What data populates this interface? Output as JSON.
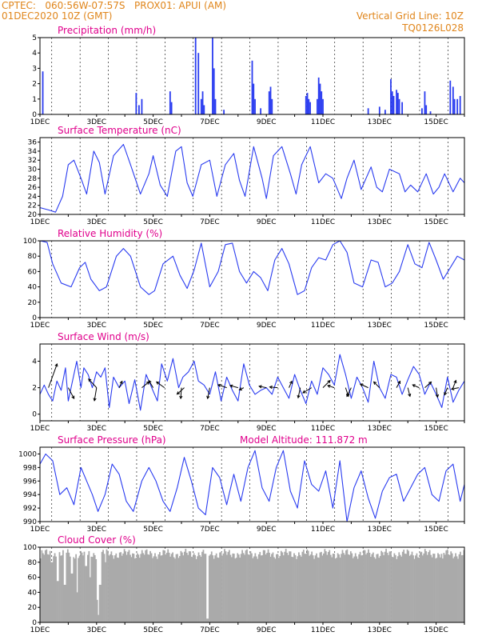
{
  "header": {
    "line1_left": "CPTEC:   060:56W-07:57S   PROX01: APUI (AM)",
    "line2_left": "01DEC2020 10Z (GMT)",
    "line2_right": "Vertical Grid Line: 10Z",
    "line3_right": "TQ0126L028"
  },
  "colors": {
    "header": "#e0861c",
    "title": "#e0008c",
    "series": "#2a3cf0",
    "cloud": "#aaaaaa",
    "arrow": "#000000"
  },
  "x_ticks": [
    "1DEC",
    "3DEC",
    "5DEC",
    "7DEC",
    "9DEC",
    "11DEC",
    "13DEC",
    "15DEC"
  ],
  "chart_data": [
    {
      "type": "bar",
      "title": "Precipitation (mm/h)",
      "x_unit": "day of December 2020 (fractional, GMT)",
      "ylim": [
        0,
        5
      ],
      "yticks": [
        0,
        1,
        2,
        3,
        4,
        5
      ],
      "bars": [
        [
          1.1,
          2.8
        ],
        [
          4.4,
          1.4
        ],
        [
          4.5,
          0.6
        ],
        [
          4.6,
          1.0
        ],
        [
          5.6,
          1.5
        ],
        [
          5.65,
          0.8
        ],
        [
          6.5,
          5.0
        ],
        [
          6.6,
          4.0
        ],
        [
          6.7,
          1.0
        ],
        [
          6.75,
          1.5
        ],
        [
          6.8,
          0.6
        ],
        [
          7.1,
          5.0
        ],
        [
          7.15,
          3.0
        ],
        [
          7.2,
          1.0
        ],
        [
          7.5,
          0.3
        ],
        [
          8.5,
          3.5
        ],
        [
          8.55,
          2.0
        ],
        [
          8.6,
          1.0
        ],
        [
          8.8,
          0.4
        ],
        [
          9.1,
          1.5
        ],
        [
          9.15,
          1.8
        ],
        [
          9.2,
          1.0
        ],
        [
          10.4,
          1.2
        ],
        [
          10.45,
          1.4
        ],
        [
          10.5,
          1.0
        ],
        [
          10.55,
          0.8
        ],
        [
          10.8,
          1.0
        ],
        [
          10.85,
          2.4
        ],
        [
          10.9,
          2.0
        ],
        [
          10.95,
          1.5
        ],
        [
          11.0,
          1.0
        ],
        [
          12.6,
          0.4
        ],
        [
          13.0,
          0.5
        ],
        [
          13.2,
          0.3
        ],
        [
          13.4,
          2.3
        ],
        [
          13.45,
          1.5
        ],
        [
          13.5,
          1.2
        ],
        [
          13.6,
          1.6
        ],
        [
          13.65,
          1.4
        ],
        [
          13.7,
          1.0
        ],
        [
          13.8,
          0.8
        ],
        [
          14.5,
          0.4
        ],
        [
          14.6,
          1.5
        ],
        [
          14.65,
          0.6
        ],
        [
          14.8,
          0.2
        ],
        [
          15.5,
          2.2
        ],
        [
          15.6,
          1.8
        ],
        [
          15.65,
          1.0
        ],
        [
          15.75,
          1.0
        ],
        [
          15.85,
          1.2
        ]
      ]
    },
    {
      "type": "line",
      "title": "Surface Temperature (nC)",
      "x_unit": "day of December 2020 (fractional, GMT)",
      "ylim": [
        20,
        37
      ],
      "yticks": [
        20,
        22,
        24,
        26,
        28,
        30,
        32,
        34,
        36
      ],
      "x": [
        1.0,
        1.3,
        1.55,
        1.8,
        2.0,
        2.2,
        2.45,
        2.65,
        2.9,
        3.1,
        3.3,
        3.6,
        3.95,
        4.2,
        4.55,
        4.85,
        5.0,
        5.25,
        5.5,
        5.8,
        6.0,
        6.2,
        6.4,
        6.7,
        7.0,
        7.25,
        7.55,
        7.85,
        8.05,
        8.25,
        8.55,
        8.85,
        9.0,
        9.25,
        9.55,
        9.85,
        10.05,
        10.25,
        10.55,
        10.85,
        11.1,
        11.35,
        11.65,
        11.85,
        12.1,
        12.35,
        12.7,
        12.9,
        13.1,
        13.35,
        13.7,
        13.9,
        14.1,
        14.35,
        14.65,
        14.9,
        15.1,
        15.3,
        15.6,
        15.85,
        16.0
      ],
      "y": [
        21.5,
        21.0,
        20.5,
        24.0,
        31.0,
        32.0,
        28.0,
        24.5,
        34.0,
        31.5,
        24.5,
        33.0,
        35.5,
        31.0,
        24.5,
        29.0,
        33.0,
        26.5,
        24.0,
        34.0,
        35.0,
        27.0,
        24.0,
        31.0,
        32.0,
        24.0,
        31.0,
        33.5,
        27.5,
        24.0,
        35.0,
        28.0,
        23.5,
        33.0,
        35.0,
        29.0,
        24.5,
        31.0,
        35.0,
        27.0,
        29.0,
        28.0,
        23.5,
        28.0,
        32.0,
        25.5,
        30.5,
        26.0,
        25.0,
        30.0,
        29.0,
        25.0,
        26.5,
        25.0,
        29.0,
        24.5,
        26.0,
        29.0,
        25.0,
        28.0,
        27.0
      ],
      "color": "#2a3cf0"
    },
    {
      "type": "line",
      "title": "Relative Humidity (%)",
      "x_unit": "day of December 2020 (fractional, GMT)",
      "ylim": [
        0,
        100
      ],
      "yticks": [
        0,
        20,
        40,
        60,
        80,
        100
      ],
      "x": [
        1.0,
        1.25,
        1.45,
        1.75,
        2.1,
        2.4,
        2.6,
        2.8,
        3.1,
        3.35,
        3.7,
        3.95,
        4.2,
        4.55,
        4.85,
        5.05,
        5.35,
        5.7,
        5.95,
        6.2,
        6.45,
        6.7,
        7.0,
        7.3,
        7.55,
        7.8,
        8.05,
        8.3,
        8.55,
        8.8,
        9.05,
        9.3,
        9.55,
        9.8,
        10.1,
        10.35,
        10.6,
        10.85,
        11.1,
        11.35,
        11.6,
        11.85,
        12.1,
        12.4,
        12.7,
        12.95,
        13.2,
        13.45,
        13.7,
        14.0,
        14.25,
        14.5,
        14.75,
        15.0,
        15.25,
        15.55,
        15.75,
        16.0
      ],
      "y": [
        100,
        98,
        70,
        45,
        40,
        65,
        72,
        50,
        35,
        40,
        80,
        90,
        80,
        40,
        30,
        35,
        70,
        80,
        55,
        38,
        62,
        97,
        40,
        60,
        95,
        97,
        60,
        45,
        60,
        52,
        35,
        75,
        90,
        70,
        30,
        35,
        65,
        78,
        75,
        95,
        100,
        85,
        45,
        40,
        75,
        72,
        40,
        45,
        60,
        95,
        70,
        65,
        98,
        75,
        50,
        68,
        80,
        75
      ],
      "color": "#2a3cf0"
    },
    {
      "type": "line",
      "title": "Surface Wind (m/s)",
      "x_unit": "day of December 2020 (fractional, GMT)",
      "ylim": [
        -0.5,
        5.3
      ],
      "yticks": [
        0,
        2,
        4
      ],
      "x": [
        1.0,
        1.15,
        1.3,
        1.45,
        1.6,
        1.75,
        1.9,
        2.0,
        2.15,
        2.3,
        2.45,
        2.55,
        2.7,
        2.85,
        3.0,
        3.15,
        3.3,
        3.45,
        3.6,
        3.8,
        4.0,
        4.15,
        4.35,
        4.55,
        4.75,
        4.95,
        5.15,
        5.3,
        5.5,
        5.7,
        5.9,
        6.05,
        6.25,
        6.45,
        6.6,
        6.8,
        7.0,
        7.2,
        7.4,
        7.6,
        7.8,
        8.0,
        8.2,
        8.4,
        8.6,
        8.8,
        9.0,
        9.2,
        9.4,
        9.6,
        9.8,
        10.0,
        10.2,
        10.4,
        10.6,
        10.8,
        11.0,
        11.2,
        11.4,
        11.6,
        11.8,
        12.0,
        12.2,
        12.4,
        12.6,
        12.8,
        13.0,
        13.2,
        13.4,
        13.6,
        13.8,
        14.0,
        14.2,
        14.4,
        14.6,
        14.8,
        15.0,
        15.2,
        15.4,
        15.6,
        15.8,
        16.0
      ],
      "y": [
        1.5,
        2.2,
        1.5,
        1.0,
        2.5,
        1.8,
        3.5,
        1.0,
        2.5,
        4.0,
        2.0,
        3.5,
        3.0,
        2.0,
        3.2,
        2.8,
        3.5,
        0.5,
        2.8,
        2.0,
        2.5,
        0.8,
        2.6,
        0.3,
        3.0,
        2.0,
        1.0,
        3.8,
        2.5,
        4.2,
        2.0,
        2.8,
        3.2,
        4.0,
        2.5,
        2.2,
        1.5,
        3.2,
        1.0,
        2.8,
        1.8,
        1.0,
        3.8,
        2.2,
        1.5,
        1.8,
        2.0,
        1.5,
        2.8,
        2.0,
        1.2,
        3.0,
        1.8,
        0.8,
        2.5,
        1.5,
        3.5,
        3.0,
        2.2,
        4.5,
        3.0,
        1.2,
        2.8,
        2.0,
        0.9,
        4.0,
        2.0,
        1.2,
        3.0,
        2.8,
        1.5,
        2.6,
        3.6,
        3.0,
        1.5,
        2.4,
        1.5,
        0.5,
        2.8,
        0.9,
        1.8,
        2.5
      ],
      "arrows": [
        [
          1.3,
          1.2,
          3.3
        ],
        [
          2.0,
          0.8,
          -1.5
        ],
        [
          3.0,
          -0.3,
          -1.8
        ],
        [
          3.0,
          -1.1,
          1.2
        ],
        [
          3.8,
          0.4,
          0.9
        ],
        [
          4.6,
          1.0,
          0.8
        ],
        [
          5.0,
          -0.6,
          1.0
        ],
        [
          5.4,
          -1.1,
          0.8
        ],
        [
          6.0,
          -0.1,
          -1.5
        ],
        [
          6.1,
          -1.0,
          -0.9
        ],
        [
          7.0,
          -0.3,
          -1.5
        ],
        [
          7.6,
          -1.2,
          0.4
        ],
        [
          8.0,
          -1.1,
          0.3
        ],
        [
          8.2,
          -0.6,
          -0.3
        ],
        [
          9.0,
          -1.0,
          0.2
        ],
        [
          9.4,
          -1.1,
          0.1
        ],
        [
          9.8,
          0.4,
          0.9
        ],
        [
          10.2,
          -0.3,
          -1.4
        ],
        [
          10.6,
          -1.2,
          -0.7
        ],
        [
          11.0,
          1.0,
          1.0
        ],
        [
          11.4,
          -0.9,
          0.3
        ],
        [
          11.8,
          0.4,
          -1.2
        ],
        [
          12.0,
          -0.6,
          -1.2
        ],
        [
          12.6,
          -1.1,
          0.5
        ],
        [
          13.0,
          -0.8,
          0.8
        ],
        [
          13.6,
          0.5,
          0.9
        ],
        [
          14.0,
          0.3,
          -1.2
        ],
        [
          14.4,
          -0.9,
          0.4
        ],
        [
          14.6,
          0.9,
          0.8
        ],
        [
          15.0,
          0.2,
          -1.3
        ],
        [
          15.4,
          -0.4,
          -1.0
        ],
        [
          15.6,
          0.4,
          1.0
        ],
        [
          15.8,
          -1.0,
          -0.2
        ]
      ],
      "color": "#2a3cf0"
    },
    {
      "type": "line",
      "title": "Surface Pressure (hPa)",
      "annotation": "Model Altitude: 111.872 m",
      "x_unit": "day of December 2020 (fractional, GMT)",
      "ylim": [
        990,
        1001
      ],
      "yticks": [
        990,
        992,
        994,
        996,
        998,
        1000
      ],
      "x": [
        1.0,
        1.2,
        1.45,
        1.7,
        1.95,
        2.2,
        2.45,
        2.65,
        2.85,
        3.05,
        3.3,
        3.55,
        3.8,
        4.05,
        4.3,
        4.6,
        4.85,
        5.1,
        5.35,
        5.6,
        5.85,
        6.1,
        6.35,
        6.6,
        6.85,
        7.1,
        7.35,
        7.6,
        7.85,
        8.1,
        8.35,
        8.6,
        8.85,
        9.1,
        9.35,
        9.6,
        9.85,
        10.1,
        10.35,
        10.6,
        10.85,
        11.1,
        11.35,
        11.6,
        11.85,
        12.1,
        12.35,
        12.6,
        12.85,
        13.1,
        13.35,
        13.6,
        13.85,
        14.1,
        14.35,
        14.6,
        14.85,
        15.1,
        15.35,
        15.6,
        15.85,
        16.0
      ],
      "y": [
        998.5,
        1000.0,
        999.0,
        994.0,
        995.0,
        992.5,
        998.0,
        996.0,
        994.0,
        991.5,
        994.0,
        998.5,
        997.0,
        993.0,
        991.5,
        996.0,
        998.0,
        996.0,
        993.0,
        991.5,
        995.0,
        999.5,
        996.0,
        992.0,
        991.0,
        998.0,
        996.5,
        992.5,
        997.0,
        993.0,
        998.0,
        1000.5,
        995.0,
        993.0,
        998.0,
        1000.5,
        994.5,
        992.0,
        999.0,
        995.5,
        994.5,
        997.5,
        992.0,
        999.0,
        990.0,
        995.0,
        997.5,
        993.5,
        990.5,
        994.5,
        996.5,
        997.0,
        993.0,
        995.0,
        997.0,
        998.0,
        994.0,
        993.0,
        997.5,
        998.5,
        993.0,
        995.5
      ],
      "color": "#2a3cf0"
    },
    {
      "type": "bar",
      "title": "Cloud Cover (%)",
      "x_unit": "day of December 2020 (fractional, GMT)",
      "ylim": [
        0,
        100
      ],
      "yticks": [
        0,
        20,
        40,
        60,
        80,
        100
      ],
      "base_value": 91,
      "dips": [
        [
          1.0,
          85
        ],
        [
          1.4,
          80
        ],
        [
          1.6,
          55
        ],
        [
          1.85,
          50
        ],
        [
          2.1,
          65
        ],
        [
          2.3,
          40
        ],
        [
          2.6,
          75
        ],
        [
          2.75,
          60
        ],
        [
          3.0,
          30
        ],
        [
          3.05,
          10
        ],
        [
          3.1,
          50
        ],
        [
          3.3,
          80
        ],
        [
          6.9,
          5
        ],
        [
          15.2,
          85
        ]
      ],
      "color": "#aaaaaa"
    }
  ]
}
